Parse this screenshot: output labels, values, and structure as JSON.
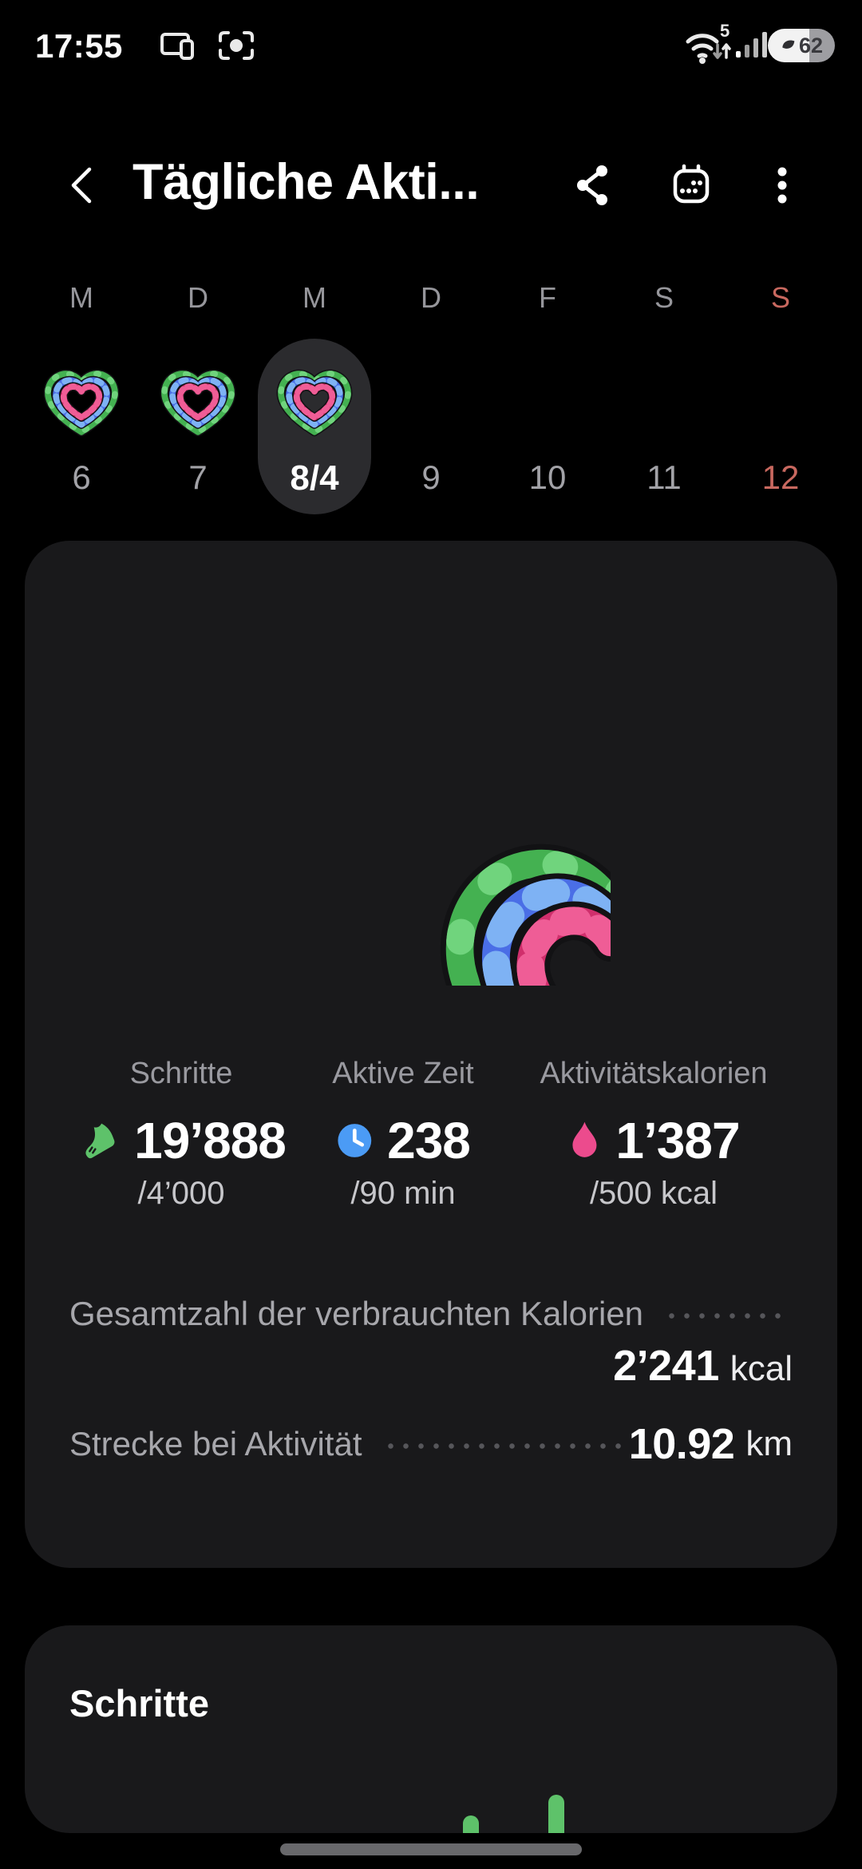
{
  "status_bar": {
    "time": "17:55",
    "wifi_label": "5",
    "battery_percent": "62"
  },
  "header": {
    "title": "Tägliche Akti..."
  },
  "week": {
    "days": [
      {
        "letter": "M",
        "date": "6",
        "has_heart": true,
        "selected": false,
        "is_sunday": false
      },
      {
        "letter": "D",
        "date": "7",
        "has_heart": true,
        "selected": false,
        "is_sunday": false
      },
      {
        "letter": "M",
        "date": "8/4",
        "has_heart": true,
        "selected": true,
        "is_sunday": false
      },
      {
        "letter": "D",
        "date": "9",
        "has_heart": false,
        "selected": false,
        "is_sunday": false
      },
      {
        "letter": "F",
        "date": "10",
        "has_heart": false,
        "selected": false,
        "is_sunday": false
      },
      {
        "letter": "S",
        "date": "11",
        "has_heart": false,
        "selected": false,
        "is_sunday": false
      },
      {
        "letter": "S",
        "date": "12",
        "has_heart": false,
        "selected": false,
        "is_sunday": true
      }
    ]
  },
  "summary": {
    "stats": [
      {
        "icon": "shoe-icon",
        "label": "Schritte",
        "value": "19’888",
        "goal": "/4’000"
      },
      {
        "icon": "clock-icon",
        "label": "Aktive Zeit",
        "value": "238",
        "goal": "/90 min"
      },
      {
        "icon": "flame-icon",
        "label": "Aktivitätskalorien",
        "value": "1’387",
        "goal": "/500 kcal"
      }
    ],
    "rows": [
      {
        "label": "Gesamtzahl der verbrauchten Kalorien",
        "value": "2’241",
        "unit": "kcal"
      },
      {
        "label": "Strecke bei Aktivität",
        "value": "10.92",
        "unit": "km"
      }
    ]
  },
  "steps_card": {
    "title": "Schritte",
    "bar_color": "#5ec26a",
    "bars": [
      {
        "height": 22
      },
      {
        "height": 48
      }
    ]
  },
  "icons": {
    "back": "chevron-left",
    "share": "share-network",
    "calendar": "calendar",
    "more": "more-vertical",
    "steps": "shoe",
    "active_time": "clock",
    "activity_calories": "flame",
    "rings": "heart-activity-rings",
    "wifi": "wifi-with-5",
    "signal": "signal-bars",
    "battery_saver": "leaf",
    "home": "home-indicator"
  },
  "colors": {
    "background": "#000000",
    "card": "#19191b",
    "selected_pill": "#2b2b2e",
    "text_primary": "#fafafa",
    "text_secondary": "#9a9aa0",
    "sunday_red": "#c8685f",
    "ring_green": "#44b151",
    "ring_green_light": "#70d47d",
    "ring_blue": "#4a6ee6",
    "ring_blue_light": "#7eb2f4",
    "ring_pink": "#d02f6c",
    "ring_pink_light": "#ef5d96",
    "steps_green": "#5ec26a",
    "clock_blue": "#4b9bf5",
    "flame_pink": "#ec4b8d",
    "home_indicator": "#68686b"
  }
}
